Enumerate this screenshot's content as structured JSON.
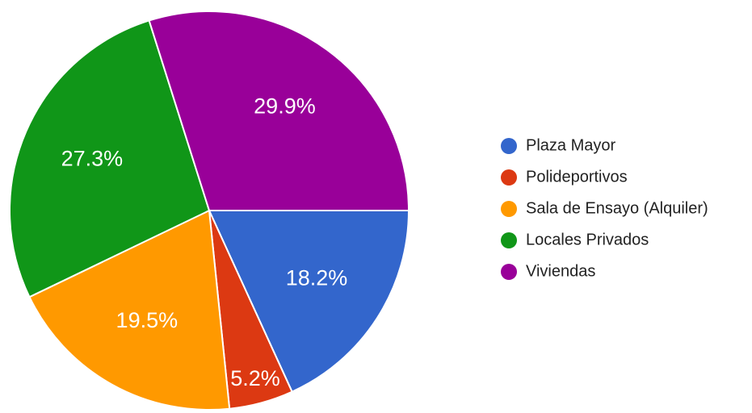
{
  "chart_data": {
    "type": "pie",
    "categories": [
      "Plaza Mayor",
      "Polideportivos",
      "Sala de Ensayo (Alquiler)",
      "Locales Privados",
      "Viviendas"
    ],
    "values": [
      18.2,
      5.2,
      19.5,
      27.3,
      29.9
    ],
    "value_labels": [
      "18.2%",
      "5.2%",
      "19.5%",
      "27.3%",
      "29.9%"
    ],
    "colors": [
      "#3366cc",
      "#dc3912",
      "#ff9900",
      "#109618",
      "#990099"
    ],
    "legend": "right"
  }
}
